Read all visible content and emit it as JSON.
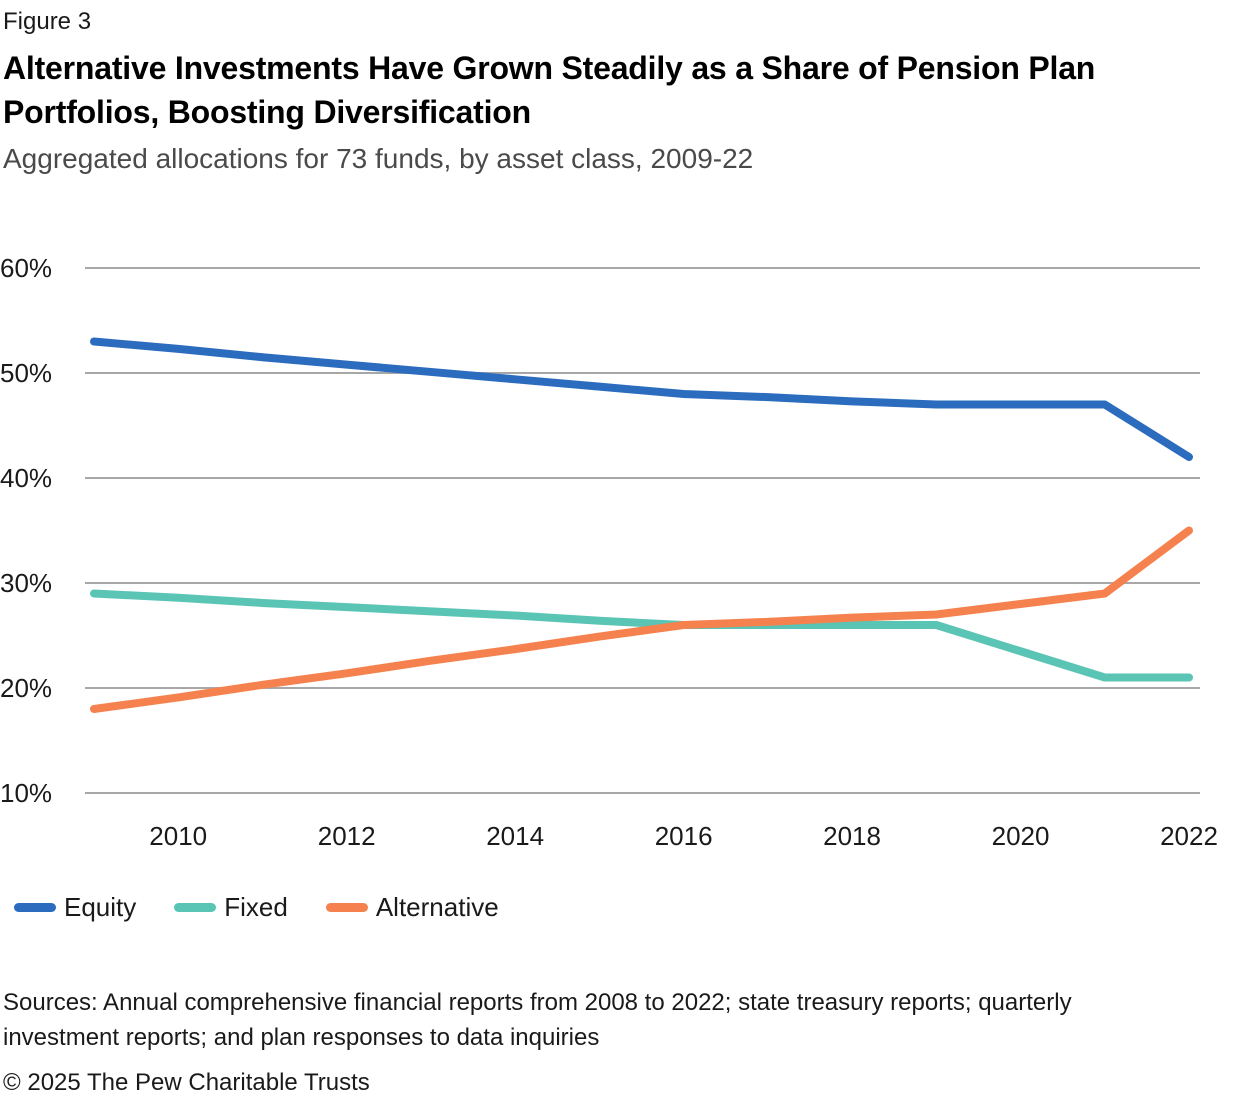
{
  "figure_label": "Figure 3",
  "title": "Alternative Investments Have Grown Steadily as a Share of Pension Plan Portfolios, Boosting Diversification",
  "subtitle": "Aggregated allocations for 73 funds, by asset class, 2009-22",
  "chart_data": {
    "type": "line",
    "x": [
      2009,
      2010,
      2011,
      2012,
      2013,
      2014,
      2015,
      2016,
      2017,
      2018,
      2019,
      2020,
      2021,
      2022
    ],
    "series": [
      {
        "name": "Equity",
        "color": "#2c6cbe",
        "values": [
          53,
          52.3,
          51.5,
          50.8,
          50.1,
          49.4,
          48.7,
          48,
          47.7,
          47.3,
          47,
          47,
          47,
          42
        ]
      },
      {
        "name": "Fixed",
        "color": "#5ac4b5",
        "values": [
          29,
          28.6,
          28.1,
          27.7,
          27.3,
          26.9,
          26.4,
          26,
          26,
          26,
          26,
          23.5,
          21,
          21
        ]
      },
      {
        "name": "Alternative",
        "color": "#f5824e",
        "values": [
          18,
          19.1,
          20.3,
          21.4,
          22.6,
          23.7,
          24.9,
          26,
          26.3,
          26.7,
          27,
          28,
          29,
          35
        ]
      }
    ],
    "x_ticks": [
      2010,
      2012,
      2014,
      2016,
      2018,
      2020,
      2022
    ],
    "y_ticks": [
      60,
      50,
      40,
      30,
      20,
      10
    ],
    "y_tick_labels": [
      "60%",
      "50%",
      "40%",
      "30%",
      "20%",
      "10%"
    ],
    "x_range": [
      2009,
      2022
    ],
    "y_range": [
      10,
      60
    ],
    "grid": "horizontal",
    "gridline_color": "#a7a7a7",
    "tick_label_color": "#1a1a1a",
    "legend_position": "bottom-left",
    "title": "Alternative Investments Have Grown Steadily as a Share of Pension Plan Portfolios, Boosting Diversification",
    "subtitle": "Aggregated allocations for 73 funds, by asset class, 2009-22"
  },
  "sources": "Sources: Annual comprehensive financial reports from 2008 to 2022; state treasury reports; quarterly investment reports; and plan responses to data inquiries",
  "copyright": "© 2025 The Pew Charitable Trusts"
}
